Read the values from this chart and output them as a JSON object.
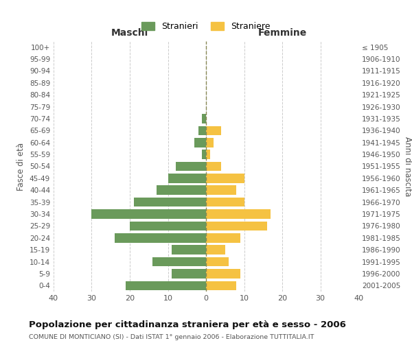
{
  "age_groups": [
    "0-4",
    "5-9",
    "10-14",
    "15-19",
    "20-24",
    "25-29",
    "30-34",
    "35-39",
    "40-44",
    "45-49",
    "50-54",
    "55-59",
    "60-64",
    "65-69",
    "70-74",
    "75-79",
    "80-84",
    "85-89",
    "90-94",
    "95-99",
    "100+"
  ],
  "birth_years": [
    "2001-2005",
    "1996-2000",
    "1991-1995",
    "1986-1990",
    "1981-1985",
    "1976-1980",
    "1971-1975",
    "1966-1970",
    "1961-1965",
    "1956-1960",
    "1951-1955",
    "1946-1950",
    "1941-1945",
    "1936-1940",
    "1931-1935",
    "1926-1930",
    "1921-1925",
    "1916-1920",
    "1911-1915",
    "1906-1910",
    "≤ 1905"
  ],
  "males": [
    21,
    9,
    14,
    9,
    24,
    20,
    30,
    19,
    13,
    10,
    8,
    1,
    3,
    2,
    1,
    0,
    0,
    0,
    0,
    0,
    0
  ],
  "females": [
    8,
    9,
    6,
    5,
    9,
    16,
    17,
    10,
    8,
    10,
    4,
    1,
    2,
    4,
    0,
    0,
    0,
    0,
    0,
    0,
    0
  ],
  "male_color": "#6a9a5b",
  "female_color": "#f5c242",
  "title": "Popolazione per cittadinanza straniera per età e sesso - 2006",
  "subtitle": "COMUNE DI MONTICIANO (SI) - Dati ISTAT 1° gennaio 2006 - Elaborazione TUTTITALIA.IT",
  "xlabel_left": "Maschi",
  "xlabel_right": "Femmine",
  "ylabel_left": "Fasce di età",
  "ylabel_right": "Anni di nascita",
  "legend_male": "Stranieri",
  "legend_female": "Straniere",
  "xlim": 40,
  "background_color": "#ffffff",
  "grid_color": "#cccccc"
}
